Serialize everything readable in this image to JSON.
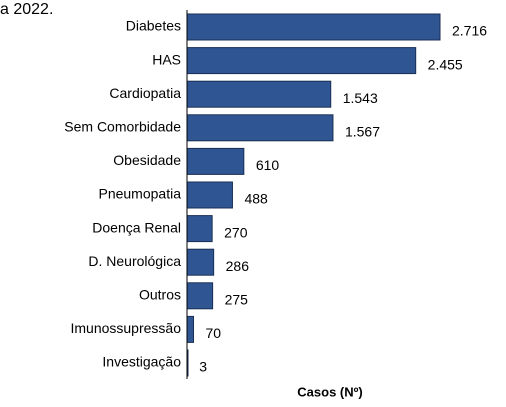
{
  "chart_data": {
    "type": "bar",
    "orientation": "horizontal",
    "title": "a 2022.",
    "x_label": "Casos (Nº)",
    "categories": [
      "Diabetes",
      "HAS",
      "Cardiopatia",
      "Sem Comorbidade",
      "Obesidade",
      "Pneumopatia",
      "Doença Renal",
      "D. Neurológica",
      "Outros",
      "Imunossupressão",
      "Investigação"
    ],
    "values": [
      2716,
      2455,
      1543,
      1567,
      610,
      488,
      270,
      286,
      275,
      70,
      3
    ],
    "value_labels": [
      "2.716",
      "2.455",
      "1.543",
      "1.567",
      "610",
      "488",
      "270",
      "286",
      "275",
      "70",
      "3"
    ],
    "color": "#2f5692"
  }
}
